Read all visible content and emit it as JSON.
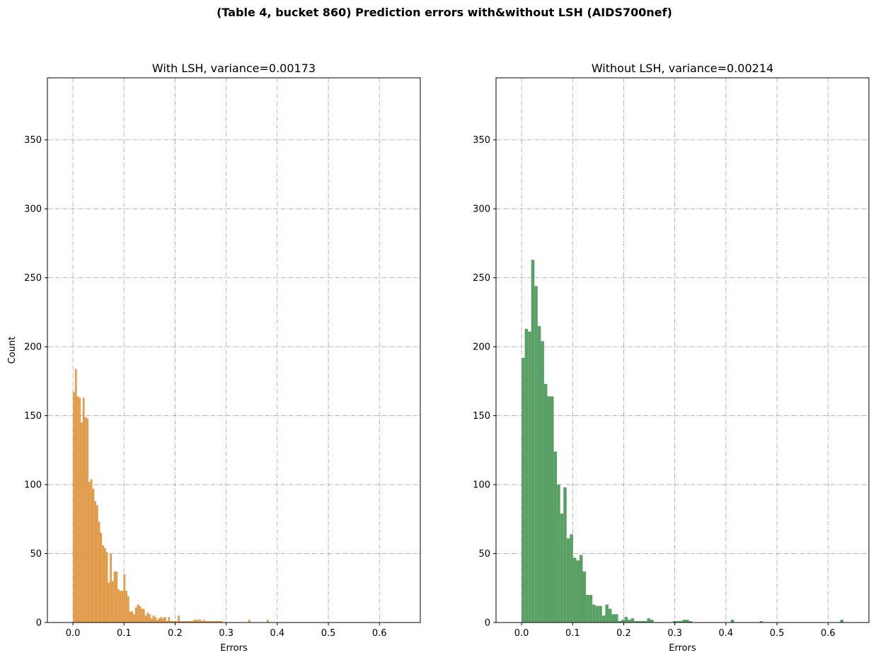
{
  "figure": {
    "suptitle": "(Table 4, bucket 860) Prediction errors with&without LSH (AIDS700nef)"
  },
  "chart_data": [
    {
      "type": "bar",
      "subtype": "histogram",
      "title": "With LSH, variance=0.00173",
      "xlabel": "Errors",
      "ylabel": "Count",
      "xlim": [
        -0.05,
        0.68
      ],
      "ylim": [
        0,
        395
      ],
      "xticks": [
        0.0,
        0.1,
        0.2,
        0.3,
        0.4,
        0.5,
        0.6
      ],
      "xtick_labels": [
        "0.0",
        "0.1",
        "0.2",
        "0.3",
        "0.4",
        "0.5",
        "0.6"
      ],
      "yticks": [
        0,
        50,
        100,
        150,
        200,
        250,
        300,
        350
      ],
      "ytick_labels": [
        "0",
        "50",
        "100",
        "150",
        "200",
        "250",
        "300",
        "350"
      ],
      "grid": true,
      "color": "#e09c4a",
      "bin_width": 0.0038,
      "bin_starts": [
        0.0,
        0.0038,
        0.0076,
        0.0114,
        0.0152,
        0.019,
        0.0228,
        0.0266,
        0.0304,
        0.0342,
        0.038,
        0.0418,
        0.0456,
        0.0494,
        0.0532,
        0.057,
        0.0608,
        0.0646,
        0.0684,
        0.0722,
        0.076,
        0.0798,
        0.0836,
        0.0874,
        0.0912,
        0.095,
        0.0988,
        0.1026,
        0.1064,
        0.1102,
        0.114,
        0.1178,
        0.1216,
        0.1254,
        0.1292,
        0.133,
        0.1368,
        0.1406,
        0.1444,
        0.1482,
        0.152,
        0.1558,
        0.1596,
        0.1634,
        0.1672,
        0.171,
        0.1748,
        0.1786,
        0.1824,
        0.1862,
        0.19,
        0.1938,
        0.1976,
        0.2014,
        0.2052,
        0.209,
        0.2128,
        0.2166,
        0.2204,
        0.2242,
        0.228,
        0.2318,
        0.2356,
        0.2394,
        0.2432,
        0.247,
        0.2508,
        0.2546,
        0.2584,
        0.2622,
        0.266,
        0.2698,
        0.2736,
        0.2774,
        0.2812,
        0.285,
        0.2888,
        0.3432,
        0.3792
      ],
      "values": [
        167,
        184,
        164,
        163,
        145,
        163,
        149,
        148,
        102,
        104,
        97,
        88,
        85,
        73,
        65,
        56,
        54,
        51,
        29,
        50,
        30,
        37,
        37,
        24,
        23,
        23,
        35,
        23,
        19,
        8,
        8,
        6,
        11,
        13,
        12,
        10,
        10,
        5,
        7,
        6,
        3,
        5,
        4,
        2,
        3,
        4,
        3,
        4,
        1,
        4,
        1,
        1,
        1,
        1,
        5,
        1,
        1,
        1,
        1,
        1,
        1,
        1,
        2,
        2,
        2,
        2,
        1,
        2,
        1,
        1,
        1,
        1,
        1,
        1,
        1,
        1,
        1,
        2,
        2
      ]
    },
    {
      "type": "bar",
      "subtype": "histogram",
      "title": "Without LSH, variance=0.00214",
      "xlabel": "Errors",
      "ylabel": "",
      "xlim": [
        -0.05,
        0.68
      ],
      "ylim": [
        0,
        395
      ],
      "xticks": [
        0.0,
        0.1,
        0.2,
        0.3,
        0.4,
        0.5,
        0.6
      ],
      "xtick_labels": [
        "0.0",
        "0.1",
        "0.2",
        "0.3",
        "0.4",
        "0.5",
        "0.6"
      ],
      "yticks": [
        0,
        50,
        100,
        150,
        200,
        250,
        300,
        350
      ],
      "ytick_labels": [
        "0",
        "50",
        "100",
        "150",
        "200",
        "250",
        "300",
        "350"
      ],
      "grid": true,
      "color": "#59a065",
      "bin_width": 0.0063,
      "bin_starts": [
        0.0,
        0.0063,
        0.0126,
        0.0189,
        0.0252,
        0.0315,
        0.0378,
        0.0441,
        0.0504,
        0.0567,
        0.063,
        0.0693,
        0.0756,
        0.0819,
        0.0882,
        0.0945,
        0.1008,
        0.1071,
        0.1134,
        0.1197,
        0.126,
        0.1323,
        0.1386,
        0.1449,
        0.1512,
        0.1575,
        0.1638,
        0.1701,
        0.1764,
        0.1827,
        0.189,
        0.1953,
        0.2016,
        0.2079,
        0.2142,
        0.2205,
        0.2268,
        0.2331,
        0.2394,
        0.2457,
        0.252,
        0.2961,
        0.3024,
        0.3087,
        0.315,
        0.3213,
        0.3276,
        0.4095,
        0.4662,
        0.6237
      ],
      "values": [
        192,
        213,
        211,
        263,
        244,
        215,
        204,
        173,
        164,
        164,
        124,
        100,
        79,
        98,
        61,
        64,
        47,
        45,
        49,
        37,
        20,
        20,
        13,
        12,
        12,
        5,
        13,
        10,
        6,
        6,
        1,
        2,
        4,
        2,
        3,
        1,
        1,
        1,
        1,
        3,
        2,
        1,
        1,
        1,
        2,
        2,
        1,
        2,
        1,
        2
      ]
    }
  ]
}
